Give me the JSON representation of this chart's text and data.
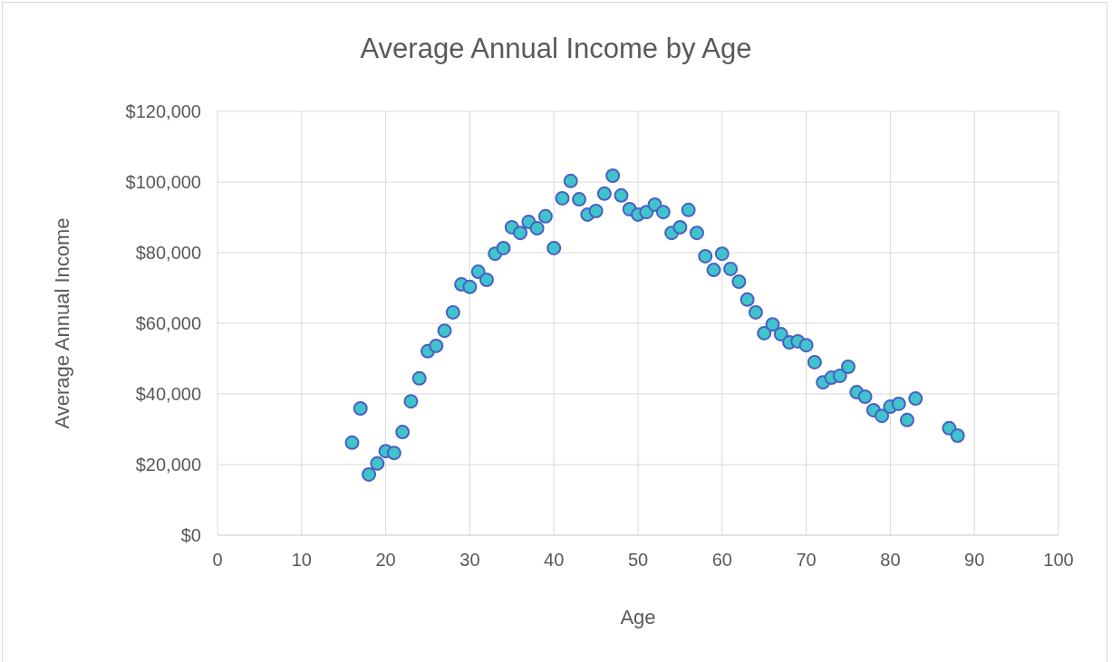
{
  "chart_data": {
    "type": "scatter",
    "title": "Average Annual Income by Age",
    "xlabel": "Age",
    "ylabel": "Average Annual Income",
    "x": [
      16,
      17,
      18,
      19,
      20,
      21,
      22,
      23,
      24,
      25,
      26,
      27,
      28,
      29,
      30,
      31,
      32,
      33,
      34,
      35,
      36,
      37,
      38,
      39,
      40,
      41,
      42,
      43,
      44,
      45,
      46,
      47,
      48,
      49,
      50,
      51,
      52,
      53,
      54,
      55,
      56,
      57,
      58,
      59,
      60,
      61,
      62,
      63,
      64,
      65,
      66,
      67,
      68,
      69,
      70,
      71,
      72,
      73,
      74,
      75,
      76,
      77,
      78,
      79,
      80,
      81,
      82,
      83,
      87,
      88
    ],
    "series": [
      {
        "color": "#40c4cc",
        "values": [
          26200,
          35900,
          17200,
          20300,
          23800,
          23300,
          29200,
          37900,
          44400,
          52100,
          53600,
          57900,
          63100,
          71000,
          70300,
          74600,
          72300,
          79700,
          81300,
          87200,
          85600,
          88700,
          86900,
          90300,
          81300,
          95400,
          100300,
          95100,
          90800,
          91800,
          96700,
          101800,
          96200,
          92300,
          90800,
          91500,
          93600,
          91500,
          85600,
          87200,
          92100,
          85600,
          79000,
          75100,
          79700,
          75400,
          71800,
          66700,
          63100,
          57200,
          59700,
          56900,
          54600,
          54900,
          53800,
          49000,
          43300,
          44600,
          45100,
          47700,
          40500,
          39200,
          35400,
          33800,
          36400,
          37200,
          32600,
          38700,
          30300,
          28200
        ]
      }
    ],
    "xlim": [
      0,
      100
    ],
    "xticks": [
      0,
      10,
      20,
      30,
      40,
      50,
      60,
      70,
      80,
      90,
      100
    ],
    "ylim": [
      0,
      120000
    ],
    "yticks": [
      {
        "value": 0,
        "label": "$0"
      },
      {
        "value": 20000,
        "label": "$20,000"
      },
      {
        "value": 40000,
        "label": "$40,000"
      },
      {
        "value": 60000,
        "label": "$60,000"
      },
      {
        "value": 80000,
        "label": "$80,000"
      },
      {
        "value": 100000,
        "label": "$100,000"
      },
      {
        "value": 120000,
        "label": "$120,000"
      }
    ],
    "grid": true,
    "marker": "circle",
    "legend": false
  }
}
